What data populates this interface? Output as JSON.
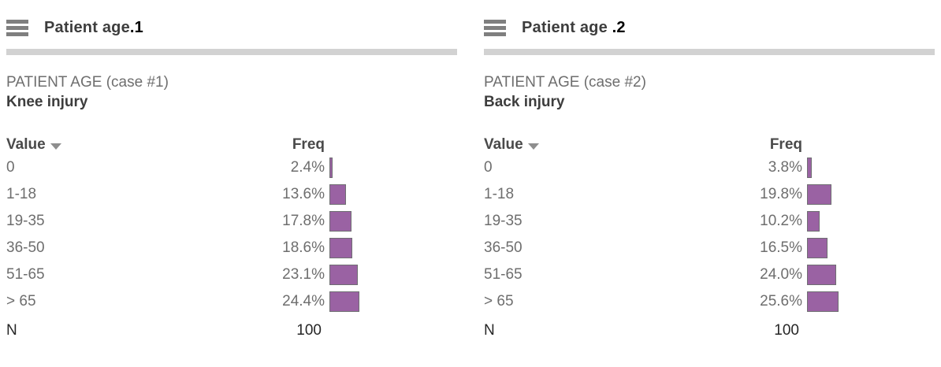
{
  "colors": {
    "bar_fill": "#9a62a3",
    "bar_border": "#6f6e72",
    "divider": "#d2d2d2",
    "hamburger": "#7f7f7f",
    "title_text": "#3d3d3d",
    "muted_text": "#6e6e6e",
    "header_text": "#4a4a4a",
    "footer_text": "#262626"
  },
  "panels": [
    {
      "title": "Patient age",
      "title_suffix": ".1",
      "menu_icon": "hamburger-menu-icon",
      "case_label": "PATIENT AGE (case #1)",
      "condition": "Knee injury",
      "columns": {
        "value": "Value",
        "freq": "Freq"
      },
      "sort_icon": "caret-down-icon",
      "n_label": "N",
      "n_value": "100"
    },
    {
      "title": "Patient age",
      "title_suffix": " .2",
      "menu_icon": "hamburger-menu-icon",
      "case_label": "PATIENT AGE (case #2)",
      "condition": "Back injury",
      "columns": {
        "value": "Value",
        "freq": "Freq"
      },
      "sort_icon": "caret-down-icon",
      "n_label": "N",
      "n_value": "100"
    }
  ],
  "chart_data": [
    {
      "type": "bar",
      "orientation": "horizontal",
      "panel_label": "Patient age.1",
      "title": "PATIENT AGE (case #1)",
      "subtitle": "Knee injury",
      "categories": [
        "0",
        "1-18",
        "19-35",
        "36-50",
        "51-65",
        "> 65"
      ],
      "values": [
        2.4,
        13.6,
        17.8,
        18.6,
        23.1,
        24.4
      ],
      "unit": "%",
      "n": 100,
      "bar_color": "#9a62a3"
    },
    {
      "type": "bar",
      "orientation": "horizontal",
      "panel_label": "Patient age .2",
      "title": "PATIENT AGE (case #2)",
      "subtitle": "Back injury",
      "categories": [
        "0",
        "1-18",
        "19-35",
        "36-50",
        "51-65",
        "> 65"
      ],
      "values": [
        3.8,
        19.8,
        10.2,
        16.5,
        24.0,
        25.6
      ],
      "unit": "%",
      "n": 100,
      "bar_color": "#9a62a3"
    }
  ]
}
